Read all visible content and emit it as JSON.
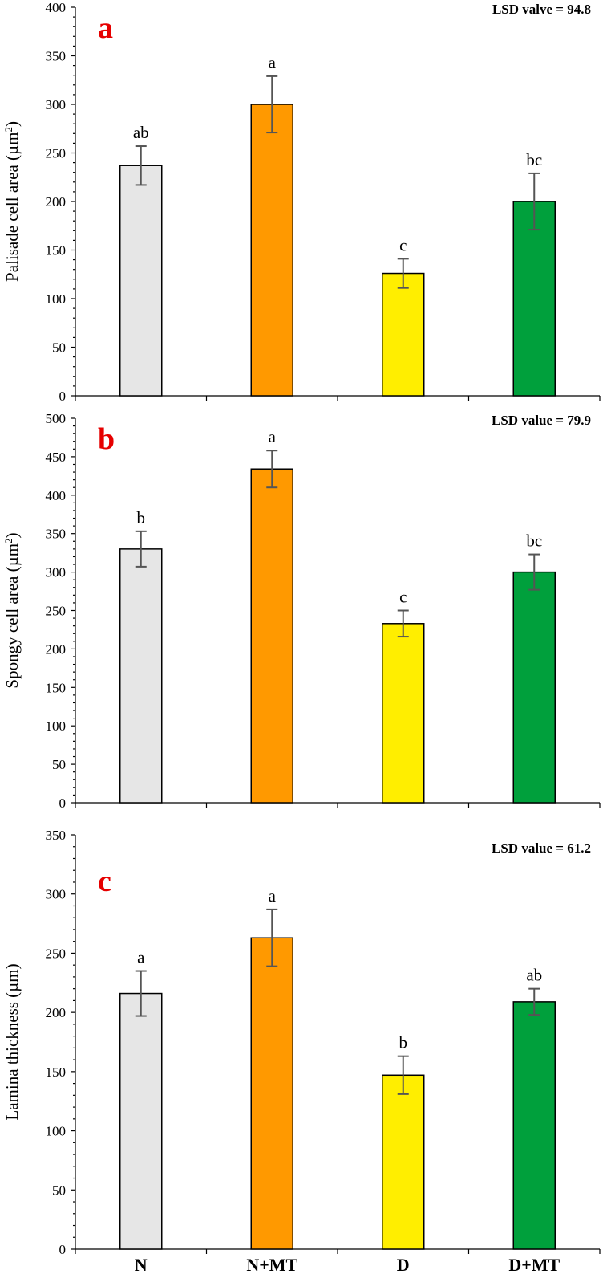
{
  "colors": {
    "N": "#e6e6e6",
    "N+MT": "#ff9900",
    "D": "#ffee00",
    "D+MT": "#00a03c",
    "panel_letter": "#e60000"
  },
  "chart_data": [
    {
      "type": "bar",
      "panel": "a",
      "annotation": "LSD valve = 94.8",
      "ylabel_main": "Palisade cell area (µm",
      "ylabel_sup": "2",
      "ylabel_tail": ")",
      "xlabel": "",
      "categories": [
        "N",
        "N+MT",
        "D",
        "D+MT"
      ],
      "values": [
        237,
        300,
        126,
        200
      ],
      "errors": [
        20,
        29,
        15,
        29
      ],
      "letters": [
        "ab",
        "a",
        "c",
        "bc"
      ],
      "ylim": [
        0,
        400
      ],
      "ystep": 50,
      "minor": 5,
      "show_categories": false
    },
    {
      "type": "bar",
      "panel": "b",
      "annotation": "LSD value = 79.9",
      "ylabel_main": "Spongy cell area (µm",
      "ylabel_sup": "2",
      "ylabel_tail": ")",
      "xlabel": "",
      "categories": [
        "N",
        "N+MT",
        "D",
        "D+MT"
      ],
      "values": [
        330,
        434,
        233,
        300
      ],
      "errors": [
        23,
        24,
        17,
        23
      ],
      "letters": [
        "b",
        "a",
        "c",
        "bc"
      ],
      "ylim": [
        0,
        500
      ],
      "ystep": 50,
      "minor": 5,
      "show_categories": false
    },
    {
      "type": "bar",
      "panel": "c",
      "annotation": "LSD value = 61.2",
      "ylabel_main": "Lamina thickness (µm)",
      "ylabel_sup": "",
      "ylabel_tail": "",
      "xlabel": "",
      "categories": [
        "N",
        "N+MT",
        "D",
        "D+MT"
      ],
      "values": [
        216,
        263,
        147,
        209
      ],
      "errors": [
        19,
        24,
        16,
        11
      ],
      "letters": [
        "a",
        "a",
        "b",
        "ab"
      ],
      "ylim": [
        0,
        350
      ],
      "ystep": 50,
      "minor": 5,
      "show_categories": true
    }
  ]
}
